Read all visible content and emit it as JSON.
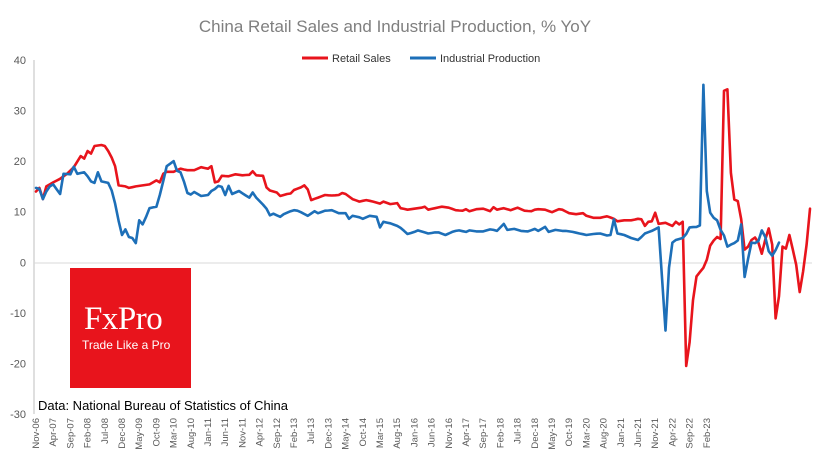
{
  "chart_data": {
    "type": "line",
    "title": "China Retail Sales and Industrial Production, % YoY",
    "xlabel": "",
    "ylabel": "",
    "ylim": [
      -30,
      40
    ],
    "yticks": [
      -30,
      -20,
      -10,
      0,
      10,
      20,
      30,
      40
    ],
    "grid": false,
    "legend_position": "top",
    "x_tick_labels": [
      "Nov-06",
      "Apr-07",
      "Sep-07",
      "Feb-08",
      "Jul-08",
      "Dec-08",
      "May-09",
      "Oct-09",
      "Mar-10",
      "Aug-10",
      "Jan-11",
      "Jun-11",
      "Nov-11",
      "Apr-12",
      "Sep-12",
      "Feb-13",
      "Jul-13",
      "Dec-13",
      "May-14",
      "Oct-14",
      "Mar-15",
      "Aug-15",
      "Jan-16",
      "Jun-16",
      "Nov-16",
      "Apr-17",
      "Sep-17",
      "Feb-18",
      "Jul-18",
      "Dec-18",
      "May-19",
      "Oct-19",
      "Mar-20",
      "Aug-20",
      "Jan-21",
      "Jun-21",
      "Nov-21",
      "Apr-22",
      "Sep-22",
      "Feb-23"
    ],
    "start_month": "Nov-06",
    "series": [
      {
        "name": "Retail Sales",
        "color": "#e8141c",
        "anchors": [
          [
            0,
            14
          ],
          [
            1,
            14.7
          ],
          [
            2,
            12.5
          ],
          [
            3,
            15
          ],
          [
            5,
            15.8
          ],
          [
            7,
            16.5
          ],
          [
            9,
            17.5
          ],
          [
            11,
            18.8
          ],
          [
            13,
            21
          ],
          [
            14,
            20.5
          ],
          [
            15,
            22
          ],
          [
            16,
            21.5
          ],
          [
            17,
            23
          ],
          [
            19,
            23.2
          ],
          [
            20,
            23
          ],
          [
            21,
            22
          ],
          [
            22,
            20.7
          ],
          [
            23,
            19
          ],
          [
            24,
            15.2
          ],
          [
            26,
            15
          ],
          [
            27,
            14.7
          ],
          [
            29,
            15
          ],
          [
            31,
            15.2
          ],
          [
            33,
            15.4
          ],
          [
            35,
            16.2
          ],
          [
            36,
            15.8
          ],
          [
            37,
            17.5
          ],
          [
            38,
            17.9
          ],
          [
            40,
            17.9
          ],
          [
            42,
            18.5
          ],
          [
            44,
            18.2
          ],
          [
            46,
            18.2
          ],
          [
            48,
            18.8
          ],
          [
            50,
            18.5
          ],
          [
            51,
            19
          ],
          [
            52,
            15.8
          ],
          [
            53,
            16
          ],
          [
            54,
            17.1
          ],
          [
            56,
            17
          ],
          [
            58,
            17.4
          ],
          [
            60,
            17.2
          ],
          [
            62,
            17.3
          ],
          [
            63,
            18
          ],
          [
            64,
            17.2
          ],
          [
            66,
            17.1
          ],
          [
            67,
            14.8
          ],
          [
            68,
            14.2
          ],
          [
            70,
            13.8
          ],
          [
            71,
            13.1
          ],
          [
            73,
            13.5
          ],
          [
            74,
            13.6
          ],
          [
            75,
            14.3
          ],
          [
            77,
            14.8
          ],
          [
            78,
            15.2
          ],
          [
            79,
            14.4
          ],
          [
            80,
            12.3
          ],
          [
            82,
            12.8
          ],
          [
            84,
            13.3
          ],
          [
            86,
            13.2
          ],
          [
            88,
            13.3
          ],
          [
            89,
            13.7
          ],
          [
            90,
            13.5
          ],
          [
            92,
            12.5
          ],
          [
            94,
            12
          ],
          [
            96,
            12.3
          ],
          [
            98,
            12
          ],
          [
            100,
            11.6
          ],
          [
            101,
            12
          ],
          [
            103,
            11.5
          ],
          [
            105,
            11.7
          ],
          [
            106,
            10.7
          ],
          [
            108,
            10.4
          ],
          [
            110,
            10.6
          ],
          [
            112,
            10.8
          ],
          [
            113,
            11
          ],
          [
            114,
            10.4
          ],
          [
            116,
            10.7
          ],
          [
            118,
            11
          ],
          [
            120,
            10.8
          ],
          [
            122,
            10.3
          ],
          [
            124,
            10.2
          ],
          [
            125,
            10.5
          ],
          [
            126,
            10.1
          ],
          [
            128,
            10.5
          ],
          [
            130,
            10.6
          ],
          [
            132,
            10.1
          ],
          [
            133,
            10.9
          ],
          [
            134,
            10.4
          ],
          [
            136,
            10.7
          ],
          [
            138,
            10.3
          ],
          [
            140,
            10.8
          ],
          [
            142,
            10.2
          ],
          [
            144,
            10.1
          ],
          [
            145,
            10.4
          ],
          [
            146,
            10.5
          ],
          [
            148,
            10.4
          ],
          [
            150,
            9.9
          ],
          [
            152,
            10.5
          ],
          [
            153,
            10.4
          ],
          [
            155,
            9.7
          ],
          [
            157,
            9.5
          ],
          [
            159,
            9.7
          ],
          [
            160,
            9.2
          ],
          [
            162,
            8.8
          ],
          [
            164,
            8.8
          ],
          [
            166,
            9.1
          ],
          [
            168,
            8.6
          ],
          [
            169,
            8.1
          ],
          [
            171,
            8.3
          ],
          [
            173,
            8.3
          ],
          [
            175,
            8.6
          ],
          [
            176,
            8.5
          ],
          [
            177,
            7.2
          ],
          [
            178,
            8
          ],
          [
            179,
            8.1
          ],
          [
            180,
            9.8
          ],
          [
            181,
            7.6
          ],
          [
            183,
            7.8
          ],
          [
            185,
            7.2
          ],
          [
            186,
            8
          ],
          [
            187,
            7.5
          ],
          [
            188,
            8
          ],
          [
            189,
            -20.5
          ],
          [
            190,
            -15.8
          ],
          [
            191,
            -7.5
          ],
          [
            192,
            -2.8
          ],
          [
            194,
            -1.1
          ],
          [
            195,
            0.5
          ],
          [
            196,
            3.3
          ],
          [
            197,
            4.3
          ],
          [
            198,
            5
          ],
          [
            199,
            4.6
          ],
          [
            200,
            33.9
          ],
          [
            201,
            34.2
          ],
          [
            202,
            17.7
          ],
          [
            203,
            12.4
          ],
          [
            204,
            12.1
          ],
          [
            205,
            8.5
          ],
          [
            206,
            2.5
          ],
          [
            207,
            3.1
          ],
          [
            208,
            4.4
          ],
          [
            209,
            4.9
          ],
          [
            210,
            3.9
          ],
          [
            211,
            1.7
          ],
          [
            212,
            4.5
          ],
          [
            213,
            6.7
          ],
          [
            214,
            3.5
          ],
          [
            215,
            -11.1
          ],
          [
            216,
            -6.7
          ],
          [
            217,
            3.1
          ],
          [
            218,
            2.7
          ],
          [
            219,
            5.4
          ],
          [
            220,
            2.5
          ],
          [
            221,
            -0.5
          ],
          [
            222,
            -5.9
          ],
          [
            223,
            -1.8
          ],
          [
            224,
            3.5
          ],
          [
            225,
            10.6
          ]
        ]
      },
      {
        "name": "Industrial Production",
        "color": "#1d6fb8",
        "anchors": [
          [
            0,
            14.7
          ],
          [
            1,
            14.5
          ],
          [
            2,
            12.5
          ],
          [
            3,
            14
          ],
          [
            4,
            15
          ],
          [
            5,
            15.4
          ],
          [
            7,
            13.5
          ],
          [
            8,
            17.5
          ],
          [
            10,
            17.4
          ],
          [
            11,
            18.9
          ],
          [
            12,
            17.5
          ],
          [
            14,
            17.8
          ],
          [
            15,
            17
          ],
          [
            16,
            16
          ],
          [
            17,
            15.7
          ],
          [
            18,
            17.8
          ],
          [
            19,
            16
          ],
          [
            21,
            15.7
          ],
          [
            22,
            14.2
          ],
          [
            23,
            11.6
          ],
          [
            24,
            8.2
          ],
          [
            25,
            5.4
          ],
          [
            26,
            6.5
          ],
          [
            27,
            5
          ],
          [
            28,
            4.8
          ],
          [
            29,
            3.8
          ],
          [
            30,
            8.3
          ],
          [
            31,
            7.5
          ],
          [
            32,
            9
          ],
          [
            33,
            10.7
          ],
          [
            35,
            11
          ],
          [
            36,
            13.3
          ],
          [
            37,
            16.1
          ],
          [
            38,
            19
          ],
          [
            40,
            20
          ],
          [
            41,
            18.1
          ],
          [
            42,
            17.8
          ],
          [
            43,
            16
          ],
          [
            44,
            13.7
          ],
          [
            45,
            13.4
          ],
          [
            46,
            13.9
          ],
          [
            48,
            13.1
          ],
          [
            50,
            13.3
          ],
          [
            51,
            14.1
          ],
          [
            52,
            14.5
          ],
          [
            53,
            15.1
          ],
          [
            54,
            14.9
          ],
          [
            55,
            13.3
          ],
          [
            56,
            15.1
          ],
          [
            57,
            13.5
          ],
          [
            59,
            14.1
          ],
          [
            61,
            13.2
          ],
          [
            62,
            12.8
          ],
          [
            63,
            13.8
          ],
          [
            64,
            12.8
          ],
          [
            66,
            11.4
          ],
          [
            67,
            10.6
          ],
          [
            68,
            9.3
          ],
          [
            69,
            9.6
          ],
          [
            71,
            9
          ],
          [
            72,
            9.5
          ],
          [
            74,
            10.1
          ],
          [
            75,
            10.3
          ],
          [
            76,
            10.2
          ],
          [
            77,
            9.9
          ],
          [
            79,
            9.2
          ],
          [
            81,
            10.1
          ],
          [
            82,
            9.7
          ],
          [
            84,
            10.2
          ],
          [
            86,
            10.3
          ],
          [
            88,
            9.7
          ],
          [
            90,
            9.7
          ],
          [
            91,
            8.6
          ],
          [
            92,
            9.2
          ],
          [
            94,
            8.9
          ],
          [
            95,
            8.6
          ],
          [
            97,
            9.2
          ],
          [
            99,
            9
          ],
          [
            100,
            6.9
          ],
          [
            101,
            8
          ],
          [
            103,
            7.7
          ],
          [
            105,
            7.2
          ],
          [
            106,
            6.8
          ],
          [
            108,
            5.6
          ],
          [
            110,
            6
          ],
          [
            111,
            6.3
          ],
          [
            112,
            6.1
          ],
          [
            114,
            5.7
          ],
          [
            116,
            5.9
          ],
          [
            117,
            5.9
          ],
          [
            119,
            5.4
          ],
          [
            121,
            6
          ],
          [
            122,
            6.2
          ],
          [
            123,
            6.3
          ],
          [
            125,
            6
          ],
          [
            126,
            6.3
          ],
          [
            128,
            6.1
          ],
          [
            130,
            6.1
          ],
          [
            132,
            6.5
          ],
          [
            133,
            6.4
          ],
          [
            134,
            6.2
          ],
          [
            136,
            7.6
          ],
          [
            137,
            6.4
          ],
          [
            139,
            6.6
          ],
          [
            141,
            6.2
          ],
          [
            143,
            6.1
          ],
          [
            145,
            6.6
          ],
          [
            146,
            6.2
          ],
          [
            148,
            7
          ],
          [
            149,
            6
          ],
          [
            151,
            6.4
          ],
          [
            153,
            6.2
          ],
          [
            154,
            6.2
          ],
          [
            156,
            6
          ],
          [
            158,
            5.7
          ],
          [
            160,
            5.4
          ],
          [
            162,
            5.6
          ],
          [
            164,
            5.7
          ],
          [
            166,
            5.3
          ],
          [
            167,
            5.4
          ],
          [
            168,
            8.5
          ],
          [
            169,
            5.7
          ],
          [
            171,
            5.4
          ],
          [
            173,
            4.8
          ],
          [
            175,
            4.4
          ],
          [
            176,
            5
          ],
          [
            177,
            5.7
          ],
          [
            179,
            6.2
          ],
          [
            181,
            6.9
          ],
          [
            183,
            -13.5
          ],
          [
            184,
            -1.1
          ],
          [
            185,
            3.9
          ],
          [
            186,
            4.4
          ],
          [
            188,
            4.8
          ],
          [
            189,
            5.6
          ],
          [
            190,
            6.9
          ],
          [
            192,
            7
          ],
          [
            193,
            7.3
          ],
          [
            194,
            35.1
          ],
          [
            195,
            14.1
          ],
          [
            196,
            9.8
          ],
          [
            197,
            8.8
          ],
          [
            198,
            8.3
          ],
          [
            199,
            6.4
          ],
          [
            200,
            5.3
          ],
          [
            201,
            3.1
          ],
          [
            202,
            3.5
          ],
          [
            203,
            3.8
          ],
          [
            204,
            4.3
          ],
          [
            205,
            7.5
          ],
          [
            206,
            -2.9
          ],
          [
            207,
            0.7
          ],
          [
            208,
            3.9
          ],
          [
            209,
            3.8
          ],
          [
            210,
            4.2
          ],
          [
            211,
            6.3
          ],
          [
            212,
            5
          ],
          [
            213,
            2.2
          ],
          [
            214,
            1.3
          ],
          [
            215,
            2.4
          ],
          [
            216,
            3.9
          ]
        ]
      }
    ]
  },
  "logo": {
    "name": "FxPro",
    "tagline": "Trade Like a Pro"
  },
  "source_note": "Data: National Bureau of Statistics of China"
}
